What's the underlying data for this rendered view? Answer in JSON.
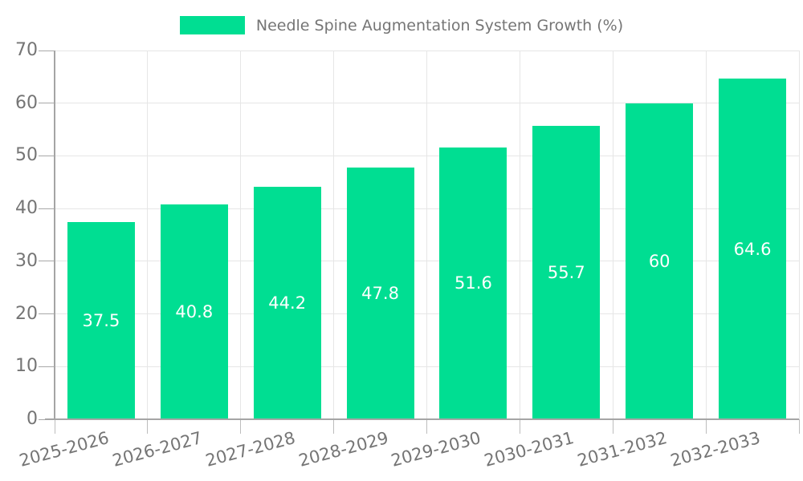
{
  "legend": {
    "position": "top"
  },
  "chart_data": {
    "type": "bar",
    "title": "Needle Spine Augmentation System Growth (%)",
    "categories": [
      "2025-2026",
      "2026-2027",
      "2027-2028",
      "2028-2029",
      "2029-2030",
      "2030-2031",
      "2031-2032",
      "2032-2033"
    ],
    "series": [
      {
        "name": "Needle Spine Augmentation System Growth (%)",
        "values": [
          37.5,
          40.8,
          44.2,
          47.8,
          51.6,
          55.7,
          60,
          64.6
        ]
      }
    ],
    "xlabel": "",
    "ylabel": "",
    "ylim": [
      0,
      70
    ],
    "yticks": [
      0,
      10,
      20,
      30,
      40,
      50,
      60,
      70
    ],
    "grid": true,
    "legend_position": "top",
    "bar_color": "#00DE92",
    "value_label_color": "#ffffff"
  },
  "colors": {
    "background": "#ffffff",
    "grid": "#e6e6e6",
    "axis": "#a5a5a5",
    "tick_mark": "#a8a8a8",
    "x_tick_mark": "#bdbdbd",
    "tick_text": "#757575"
  }
}
